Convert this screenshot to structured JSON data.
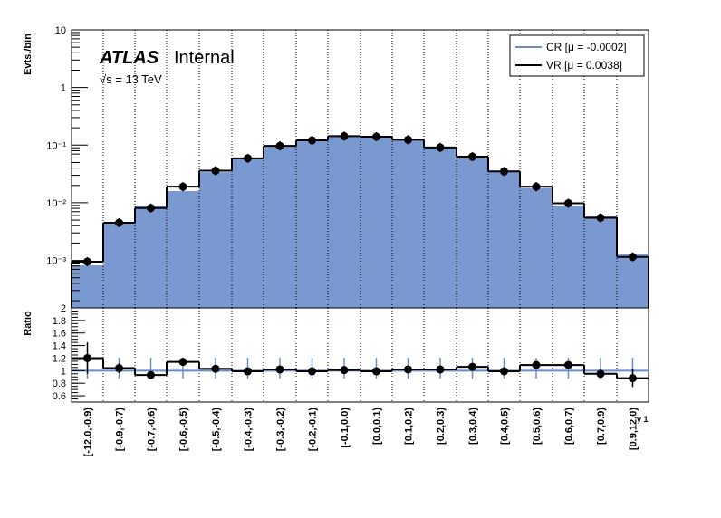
{
  "chart_data": [
    {
      "type": "bar",
      "panel": "main",
      "ylabel": "Evts./bin",
      "yscale": "log",
      "ylim": [
        0.00015,
        10
      ],
      "y_ticks": [
        {
          "value": 0.001,
          "label": "10⁻³"
        },
        {
          "value": 0.01,
          "label": "10⁻²"
        },
        {
          "value": 0.1,
          "label": "10⁻¹"
        },
        {
          "value": 1,
          "label": "1"
        },
        {
          "value": 10,
          "label": "10"
        }
      ],
      "categories": [
        "[-12.0,-0.9)",
        "[-0.9,-0.7)",
        "[-0.7,-0.6)",
        "[-0.6,-0.5)",
        "[-0.5,-0.4)",
        "[-0.4,-0.3)",
        "[-0.3,-0.2)",
        "[-0.2,-0.1)",
        "[-0.1,0.0)",
        "[0.0,0.1)",
        "[0.1,0.2)",
        "[0.2,0.3)",
        "[0.3,0.4)",
        "[0.4,0.5)",
        "[0.5,0.6)",
        "[0.6,0.7)",
        "[0.7,0.9)",
        "[0.9,12.0)"
      ],
      "series": [
        {
          "name": "CR [μ = -0.0002]",
          "style": "filled",
          "color": "#7b99d1",
          "values": [
            0.00082,
            0.0045,
            0.0088,
            0.016,
            0.034,
            0.058,
            0.095,
            0.12,
            0.14,
            0.14,
            0.12,
            0.09,
            0.059,
            0.036,
            0.018,
            0.0089,
            0.0058,
            0.0013
          ]
        },
        {
          "name": "VR [μ = 0.0038]",
          "style": "step-with-points",
          "color": "#000000",
          "values": [
            0.00095,
            0.0045,
            0.0081,
            0.019,
            0.036,
            0.059,
            0.097,
            0.121,
            0.143,
            0.14,
            0.124,
            0.091,
            0.063,
            0.035,
            0.019,
            0.0098,
            0.0055,
            0.00115
          ]
        }
      ],
      "legend_position": "top-right",
      "annotations": {
        "experiment": "ATLAS",
        "status": "Internal",
        "energy": "√s = 13 TeV"
      }
    },
    {
      "type": "line",
      "panel": "ratio",
      "ylabel": "Ratio",
      "ylim": [
        0.5,
        2
      ],
      "y_ticks": [
        {
          "value": 0.6,
          "label": "0.6"
        },
        {
          "value": 0.8,
          "label": "0.8"
        },
        {
          "value": 1,
          "label": "1"
        },
        {
          "value": 1.2,
          "label": "1.2"
        },
        {
          "value": 1.4,
          "label": "1.4"
        },
        {
          "value": 1.6,
          "label": "1.6"
        },
        {
          "value": 1.8,
          "label": "1.8"
        },
        {
          "value": 2,
          "label": "2"
        }
      ],
      "xlabel": "γ 1",
      "reference": 1,
      "values": [
        1.2,
        1.04,
        0.93,
        1.14,
        1.03,
        0.99,
        1.02,
        0.99,
        1.01,
        0.99,
        1.02,
        1.02,
        1.06,
        0.99,
        1.09,
        1.09,
        0.95,
        0.88
      ],
      "errors": [
        0.25,
        0.08,
        0.05,
        0.04,
        0.03,
        0.02,
        0.02,
        0.02,
        0.02,
        0.02,
        0.02,
        0.02,
        0.03,
        0.03,
        0.04,
        0.06,
        0.06,
        0.14
      ]
    }
  ],
  "colors": {
    "fill": "#7b99d1",
    "cr_line": "#6a8cc7",
    "vr_line": "#000000"
  }
}
